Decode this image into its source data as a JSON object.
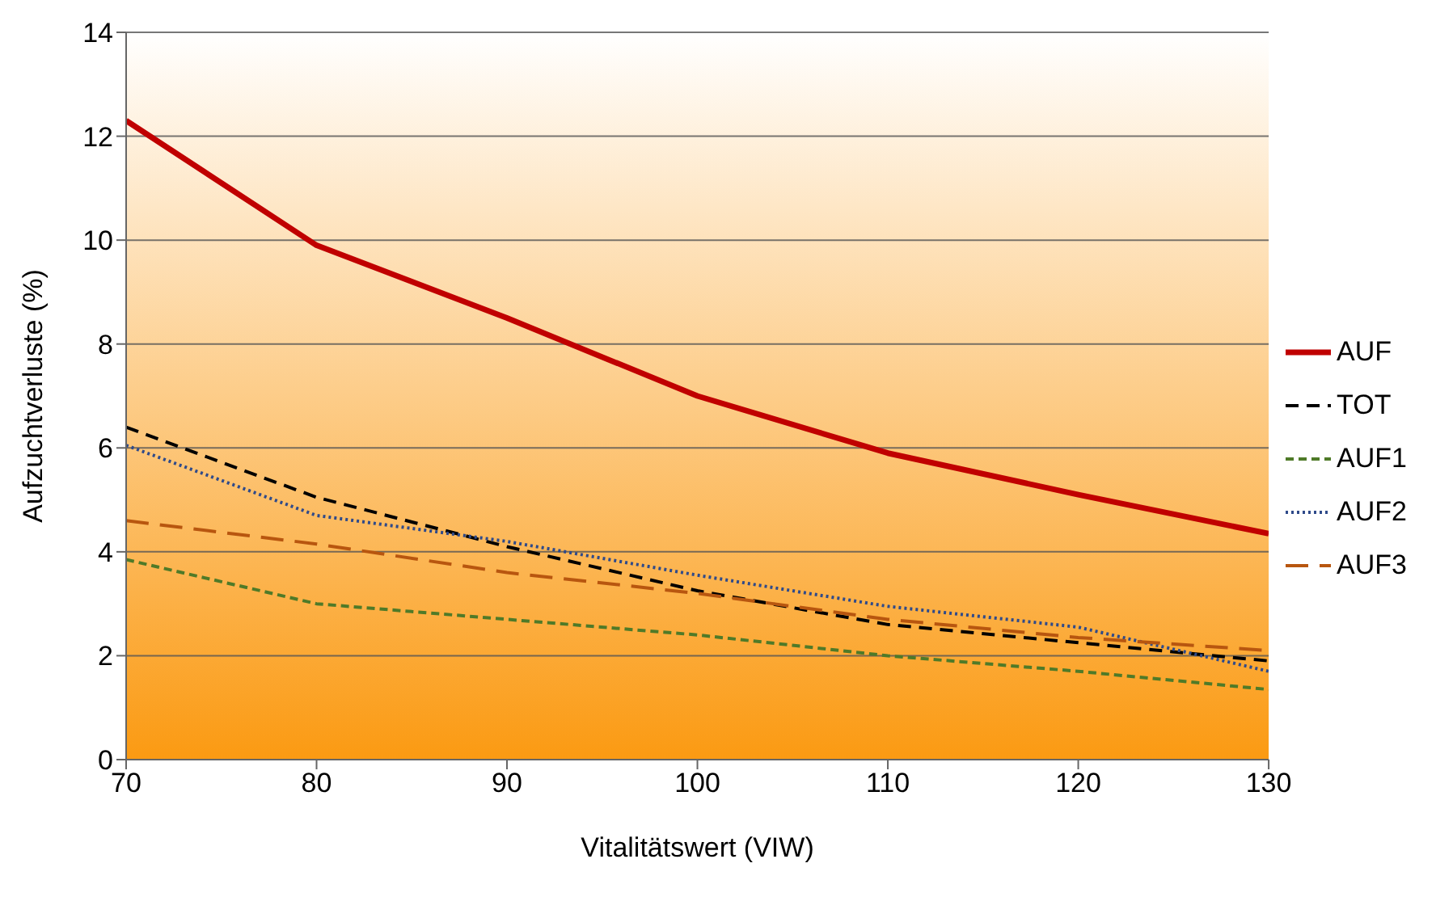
{
  "chart_data": {
    "type": "line",
    "xlabel": "Vitalitätswert (VIW)",
    "ylabel": "Aufzuchtverluste (%)",
    "x": [
      70,
      80,
      90,
      100,
      110,
      120,
      130
    ],
    "series": [
      {
        "name": "AUF",
        "color": "#c00000",
        "line_style": "solid",
        "values": [
          12.3,
          9.9,
          8.5,
          7.0,
          5.9,
          5.1,
          4.35
        ]
      },
      {
        "name": "TOT",
        "color": "#000000",
        "line_style": "dashed",
        "values": [
          6.4,
          5.05,
          4.1,
          3.25,
          2.6,
          2.25,
          1.9
        ]
      },
      {
        "name": "AUF1",
        "color": "#4f7a28",
        "line_style": "dashed",
        "values": [
          3.85,
          3.0,
          2.7,
          2.4,
          2.0,
          1.7,
          1.35
        ]
      },
      {
        "name": "AUF2",
        "color": "#2f4a8a",
        "line_style": "dotted",
        "values": [
          6.05,
          4.7,
          4.2,
          3.55,
          2.95,
          2.55,
          1.7
        ]
      },
      {
        "name": "AUF3",
        "color": "#b8560f",
        "line_style": "dashed",
        "values": [
          4.6,
          4.15,
          3.6,
          3.2,
          2.7,
          2.35,
          2.1
        ]
      }
    ],
    "xlim": [
      70,
      130
    ],
    "xticks": [
      70,
      80,
      90,
      100,
      110,
      120,
      130
    ],
    "ylim": [
      0,
      14
    ],
    "yticks": [
      0,
      2,
      4,
      6,
      8,
      10,
      12,
      14
    ],
    "grid": "y",
    "legend": "right",
    "marker": "none"
  }
}
